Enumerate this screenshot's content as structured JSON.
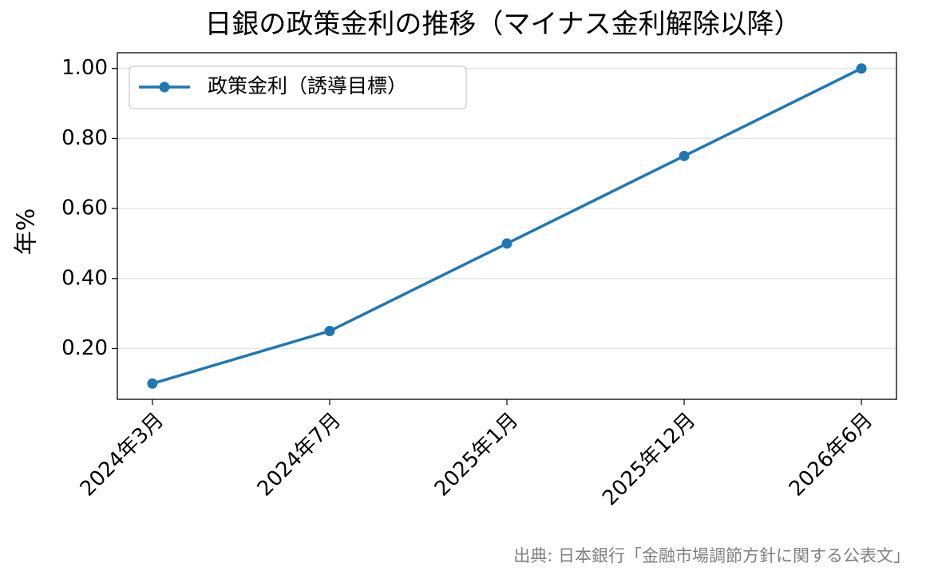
{
  "chart_data": {
    "type": "line",
    "title": "日銀の政策金利の推移（マイナス金利解除以降）",
    "y_label": "年%",
    "source": "出典: 日本銀行「金融市場調節方針に関する公表文」",
    "categories": [
      "2024年3月",
      "2024年7月",
      "2025年1月",
      "2025年12月",
      "2026年6月"
    ],
    "series": [
      {
        "name": "政策金利（誘導目標）",
        "color": "#1f77b4",
        "values": [
          0.1,
          0.25,
          0.5,
          0.75,
          1.0
        ]
      }
    ],
    "ylim": [
      0.055,
      1.045
    ],
    "yticks": [
      {
        "value": 0.2,
        "label": "0.20"
      },
      {
        "value": 0.4,
        "label": "0.40"
      },
      {
        "value": 0.6,
        "label": "0.60"
      },
      {
        "value": 0.8,
        "label": "0.80"
      },
      {
        "value": 1.0,
        "label": "1.00"
      }
    ],
    "grid": "y",
    "legend": "upper left"
  }
}
